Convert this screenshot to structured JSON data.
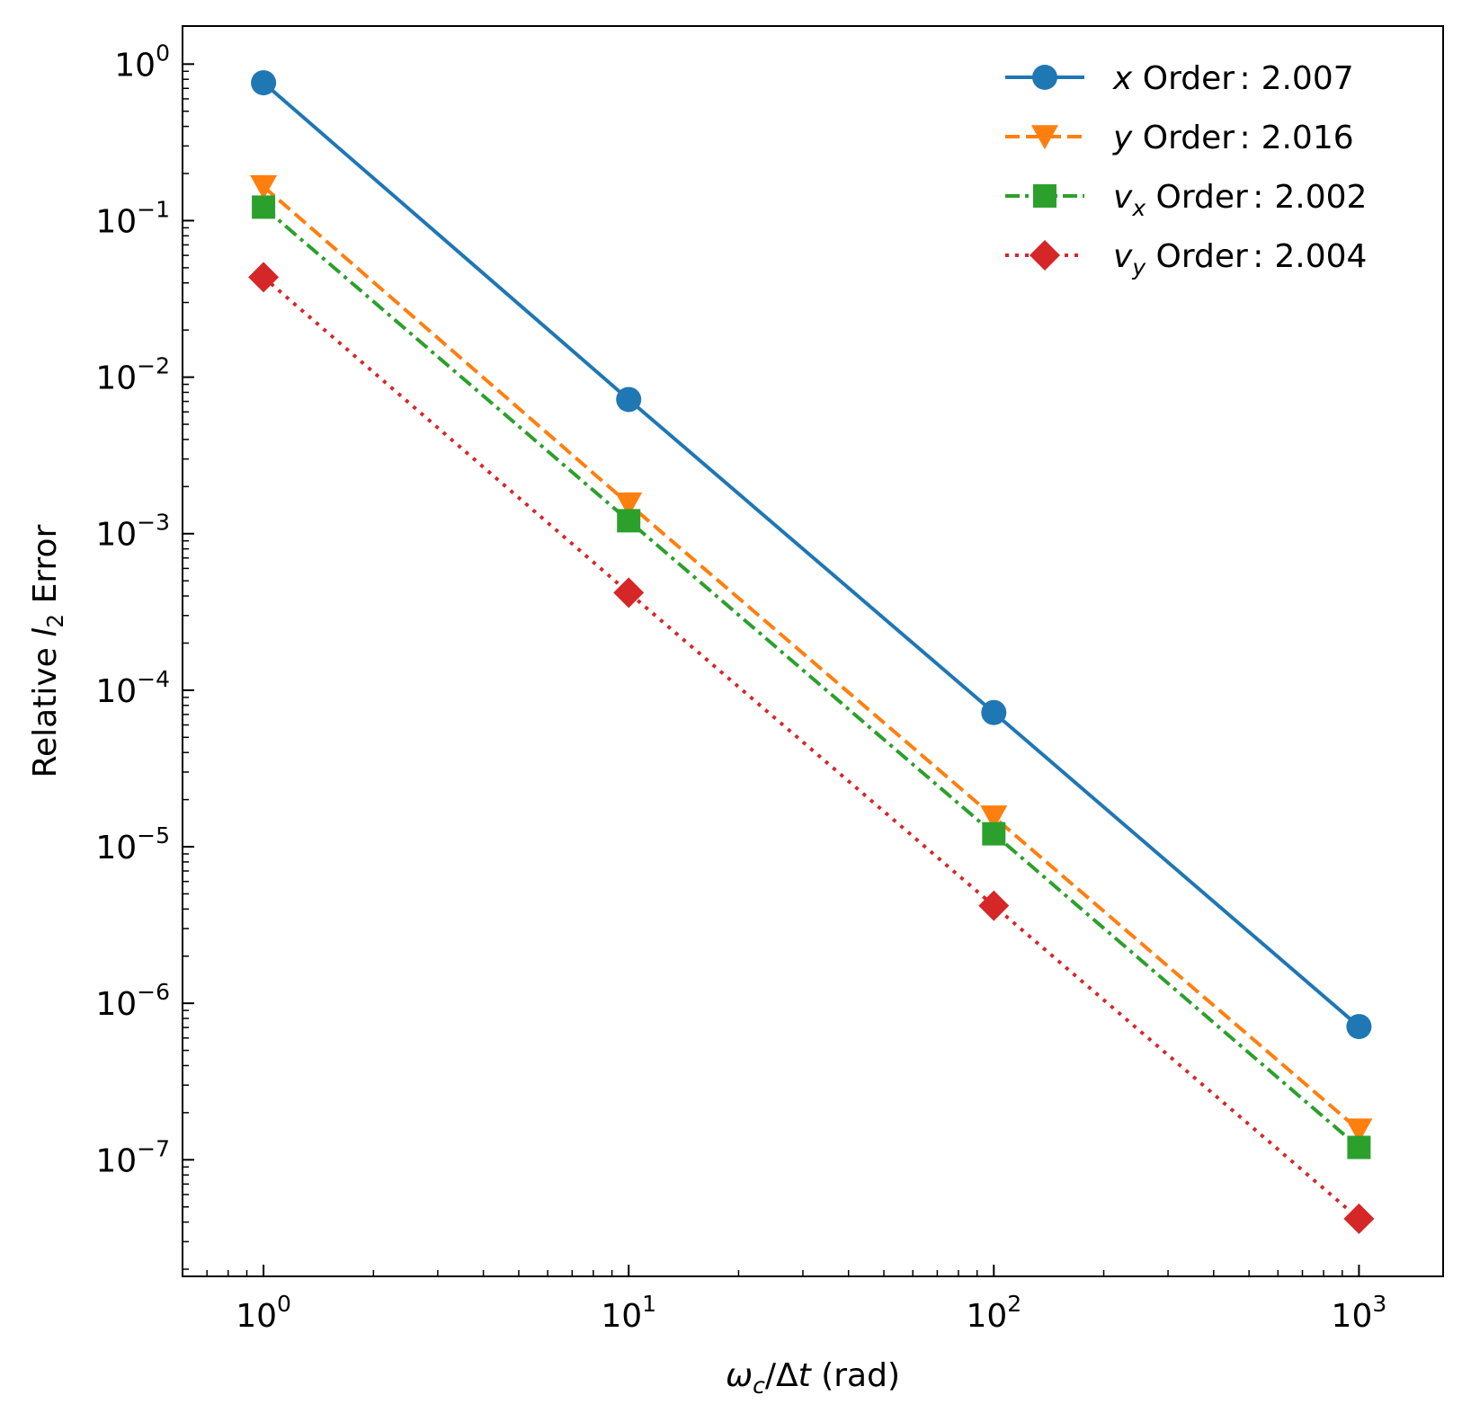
{
  "chart_data": {
    "type": "line",
    "xscale": "log",
    "yscale": "log",
    "xlim": [
      0.6,
      1700
    ],
    "ylim": [
      1.8e-08,
      1.75
    ],
    "xticks": [
      {
        "value": 1,
        "base": "10",
        "exp": "0"
      },
      {
        "value": 10,
        "base": "10",
        "exp": "1"
      },
      {
        "value": 100,
        "base": "10",
        "exp": "2"
      },
      {
        "value": 1000,
        "base": "10",
        "exp": "3"
      }
    ],
    "yticks": [
      {
        "value": 1,
        "base": "10",
        "exp": "0"
      },
      {
        "value": 0.1,
        "base": "10",
        "exp": "−1"
      },
      {
        "value": 0.01,
        "base": "10",
        "exp": "−2"
      },
      {
        "value": 0.001,
        "base": "10",
        "exp": "−3"
      },
      {
        "value": 0.0001,
        "base": "10",
        "exp": "−4"
      },
      {
        "value": 1e-05,
        "base": "10",
        "exp": "−5"
      },
      {
        "value": 1e-06,
        "base": "10",
        "exp": "−6"
      },
      {
        "value": 1e-07,
        "base": "10",
        "exp": "−7"
      }
    ],
    "xlabel": {
      "omega": "ω",
      "sub": "c",
      "mid": "/Δ",
      "t": "t",
      "rest": " (rad)"
    },
    "ylabel": {
      "pre": "Relative ",
      "l": "l",
      "sub": "2",
      "post": " Error"
    },
    "grid": false,
    "legend_position": "top-right",
    "x": [
      1,
      10,
      100,
      1000
    ],
    "series": [
      {
        "var": "x",
        "sub": "",
        "order_label": " Order",
        "colon": ":",
        "order_value": "2.007",
        "color": "#1f77b4",
        "dash": "solid",
        "marker": "circle",
        "values": [
          0.76,
          0.0072,
          7.2e-05,
          7.1e-07
        ]
      },
      {
        "var": "y",
        "sub": "",
        "order_label": " Order",
        "colon": ":",
        "order_value": "2.016",
        "color": "#ff7f0e",
        "dash": "dashed",
        "marker": "triangle-down",
        "values": [
          0.165,
          0.00155,
          1.55e-05,
          1.55e-07
        ]
      },
      {
        "var": "v",
        "sub": "x",
        "order_label": " Order",
        "colon": ":",
        "order_value": "2.002",
        "color": "#2ca02c",
        "dash": "dashdot",
        "marker": "square",
        "values": [
          0.122,
          0.00121,
          1.21e-05,
          1.2e-07
        ]
      },
      {
        "var": "v",
        "sub": "y",
        "order_label": " Order",
        "colon": ":",
        "order_value": "2.004",
        "color": "#d62728",
        "dash": "dotted",
        "marker": "diamond",
        "values": [
          0.0435,
          0.00042,
          4.2e-06,
          4.2e-08
        ]
      }
    ]
  }
}
